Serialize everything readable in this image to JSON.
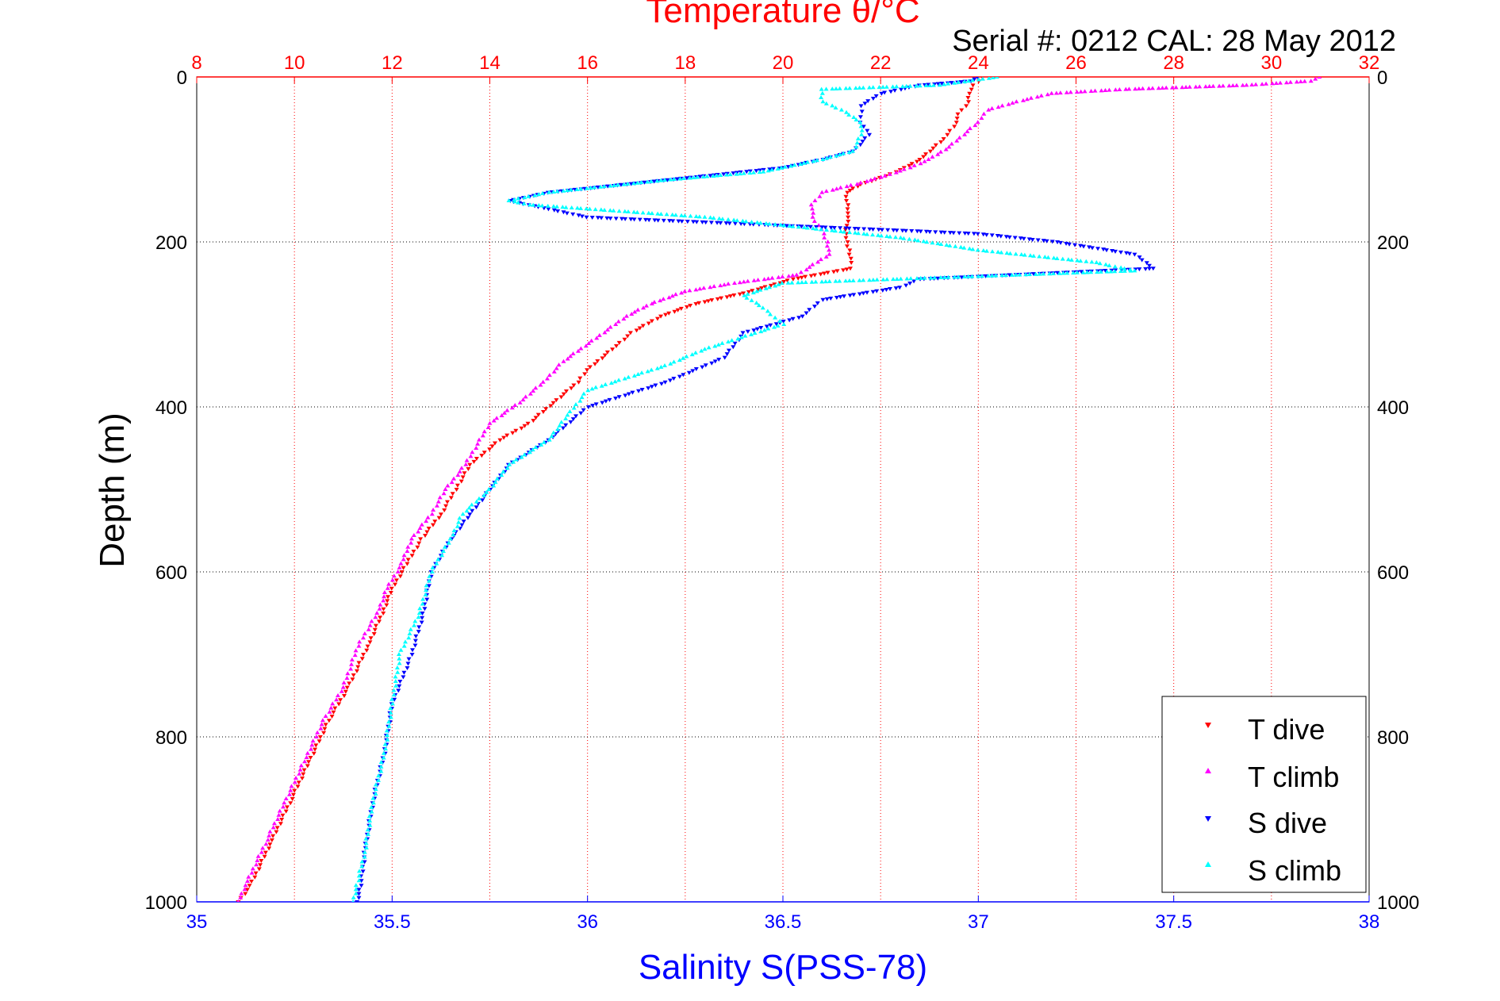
{
  "chart_data": {
    "type": "scatter",
    "title": "Temperature θ/°C",
    "subtitle": "Serial #: 0212  CAL: 28 May 2012",
    "ylabel": "Depth (m)",
    "xlabel_bottom": "Salinity S(PSS-78)",
    "x_top": {
      "label": "Temperature θ/°C",
      "range": [
        8,
        32
      ],
      "ticks": [
        8,
        10,
        12,
        14,
        16,
        18,
        20,
        22,
        24,
        26,
        28,
        30,
        32
      ],
      "color": "#ff0000"
    },
    "x_bottom": {
      "label": "Salinity S(PSS-78)",
      "range": [
        35,
        38
      ],
      "ticks": [
        "35",
        "35.5",
        "36",
        "36.5",
        "37",
        "37.5",
        "38"
      ],
      "color": "#0000ff"
    },
    "y": {
      "label": "Depth (m)",
      "range": [
        0,
        1000
      ],
      "reversed": true,
      "ticks": [
        0,
        200,
        400,
        600,
        800,
        1000
      ]
    },
    "grid": true,
    "legend_position": "bottom-right",
    "series": [
      {
        "name": "T dive",
        "axis": "temperature",
        "color": "#ff0000",
        "marker": "triangle-down",
        "points": [
          [
            24.1,
            0
          ],
          [
            24.0,
            5
          ],
          [
            23.9,
            10
          ],
          [
            23.8,
            20
          ],
          [
            23.8,
            30
          ],
          [
            23.6,
            45
          ],
          [
            23.5,
            60
          ],
          [
            23.3,
            75
          ],
          [
            23.0,
            90
          ],
          [
            22.8,
            100
          ],
          [
            22.5,
            110
          ],
          [
            22.1,
            120
          ],
          [
            21.6,
            130
          ],
          [
            21.3,
            140
          ],
          [
            21.3,
            150
          ],
          [
            21.35,
            165
          ],
          [
            21.3,
            180
          ],
          [
            21.3,
            195
          ],
          [
            21.35,
            210
          ],
          [
            21.4,
            225
          ],
          [
            21.4,
            232
          ],
          [
            20.2,
            245
          ],
          [
            19.2,
            262
          ],
          [
            18.2,
            275
          ],
          [
            17.5,
            290
          ],
          [
            16.9,
            310
          ],
          [
            16.5,
            330
          ],
          [
            16.0,
            355
          ],
          [
            15.8,
            370
          ],
          [
            15.3,
            395
          ],
          [
            14.8,
            420
          ],
          [
            14.2,
            440
          ],
          [
            13.6,
            470
          ],
          [
            13.3,
            500
          ],
          [
            13.0,
            530
          ],
          [
            12.6,
            560
          ],
          [
            12.3,
            590
          ],
          [
            12.0,
            620
          ],
          [
            11.8,
            650
          ],
          [
            11.5,
            690
          ],
          [
            11.1,
            740
          ],
          [
            10.7,
            780
          ],
          [
            10.3,
            830
          ],
          [
            9.9,
            880
          ],
          [
            9.5,
            930
          ],
          [
            9.1,
            980
          ],
          [
            8.85,
            1000
          ]
        ]
      },
      {
        "name": "T climb",
        "axis": "temperature",
        "color": "#ff00ff",
        "marker": "triangle-up",
        "points": [
          [
            31.0,
            0
          ],
          [
            30.8,
            5
          ],
          [
            29.5,
            10
          ],
          [
            27.0,
            15
          ],
          [
            25.5,
            20
          ],
          [
            24.8,
            30
          ],
          [
            24.2,
            40
          ],
          [
            24.0,
            55
          ],
          [
            23.7,
            70
          ],
          [
            23.4,
            85
          ],
          [
            23.0,
            100
          ],
          [
            22.6,
            110
          ],
          [
            22.1,
            120
          ],
          [
            21.5,
            130
          ],
          [
            20.8,
            140
          ],
          [
            20.6,
            155
          ],
          [
            20.6,
            170
          ],
          [
            20.8,
            185
          ],
          [
            20.9,
            200
          ],
          [
            20.95,
            215
          ],
          [
            20.3,
            240
          ],
          [
            19.0,
            250
          ],
          [
            18.0,
            260
          ],
          [
            17.3,
            275
          ],
          [
            16.8,
            290
          ],
          [
            16.1,
            320
          ],
          [
            15.5,
            345
          ],
          [
            15.1,
            370
          ],
          [
            14.6,
            395
          ],
          [
            14.0,
            420
          ],
          [
            13.8,
            440
          ],
          [
            13.5,
            470
          ],
          [
            13.1,
            500
          ],
          [
            12.8,
            530
          ],
          [
            12.4,
            560
          ],
          [
            12.2,
            590
          ],
          [
            11.9,
            620
          ],
          [
            11.7,
            650
          ],
          [
            11.3,
            690
          ],
          [
            11.0,
            740
          ],
          [
            10.6,
            780
          ],
          [
            10.2,
            830
          ],
          [
            9.8,
            880
          ],
          [
            9.4,
            930
          ],
          [
            9.0,
            980
          ],
          [
            8.85,
            1000
          ]
        ]
      },
      {
        "name": "S dive",
        "axis": "salinity",
        "color": "#0000ff",
        "marker": "triangle-down",
        "points": [
          [
            37.0,
            0
          ],
          [
            36.98,
            5
          ],
          [
            36.85,
            10
          ],
          [
            36.75,
            20
          ],
          [
            36.7,
            35
          ],
          [
            36.7,
            55
          ],
          [
            36.72,
            70
          ],
          [
            36.68,
            90
          ],
          [
            36.6,
            100
          ],
          [
            36.5,
            110
          ],
          [
            36.3,
            120
          ],
          [
            36.1,
            130
          ],
          [
            35.9,
            140
          ],
          [
            35.8,
            150
          ],
          [
            35.9,
            160
          ],
          [
            36.0,
            170
          ],
          [
            36.5,
            180
          ],
          [
            37.0,
            190
          ],
          [
            37.2,
            200
          ],
          [
            37.4,
            215
          ],
          [
            37.45,
            232
          ],
          [
            36.85,
            245
          ],
          [
            36.8,
            255
          ],
          [
            36.6,
            270
          ],
          [
            36.55,
            290
          ],
          [
            36.4,
            310
          ],
          [
            36.35,
            340
          ],
          [
            36.2,
            370
          ],
          [
            36.0,
            400
          ],
          [
            35.9,
            440
          ],
          [
            35.8,
            470
          ],
          [
            35.75,
            500
          ],
          [
            35.7,
            530
          ],
          [
            35.65,
            560
          ],
          [
            35.6,
            600
          ],
          [
            35.58,
            650
          ],
          [
            35.55,
            700
          ],
          [
            35.5,
            760
          ],
          [
            35.48,
            820
          ],
          [
            35.45,
            880
          ],
          [
            35.43,
            940
          ],
          [
            35.42,
            980
          ],
          [
            35.41,
            1000
          ]
        ]
      },
      {
        "name": "S climb",
        "axis": "salinity",
        "color": "#00ffff",
        "marker": "triangle-up",
        "points": [
          [
            37.05,
            0
          ],
          [
            36.9,
            10
          ],
          [
            36.6,
            15
          ],
          [
            36.6,
            30
          ],
          [
            36.65,
            40
          ],
          [
            36.7,
            55
          ],
          [
            36.7,
            70
          ],
          [
            36.68,
            90
          ],
          [
            36.6,
            100
          ],
          [
            36.45,
            115
          ],
          [
            36.2,
            125
          ],
          [
            35.9,
            140
          ],
          [
            35.8,
            150
          ],
          [
            35.85,
            155
          ],
          [
            36.3,
            170
          ],
          [
            36.6,
            185
          ],
          [
            36.8,
            195
          ],
          [
            37.0,
            210
          ],
          [
            37.3,
            225
          ],
          [
            37.4,
            235
          ],
          [
            36.5,
            250
          ],
          [
            36.4,
            265
          ],
          [
            36.45,
            280
          ],
          [
            36.5,
            300
          ],
          [
            36.3,
            330
          ],
          [
            36.2,
            350
          ],
          [
            36.0,
            380
          ],
          [
            35.95,
            410
          ],
          [
            35.9,
            440
          ],
          [
            35.8,
            470
          ],
          [
            35.75,
            500
          ],
          [
            35.68,
            530
          ],
          [
            35.65,
            560
          ],
          [
            35.6,
            600
          ],
          [
            35.57,
            650
          ],
          [
            35.52,
            700
          ],
          [
            35.5,
            760
          ],
          [
            35.48,
            820
          ],
          [
            35.45,
            880
          ],
          [
            35.43,
            940
          ],
          [
            35.41,
            980
          ],
          [
            35.4,
            1000
          ]
        ]
      }
    ]
  }
}
